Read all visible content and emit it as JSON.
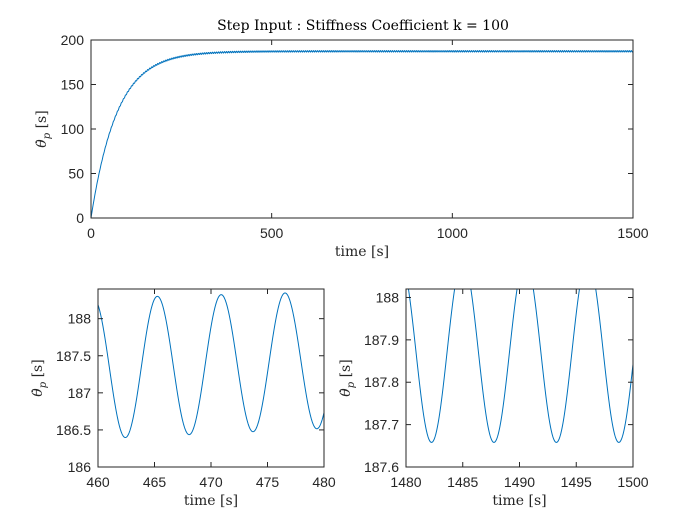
{
  "figure": {
    "background": "#ffffff",
    "line_color": "#0072BD"
  },
  "chart_data": [
    {
      "id": "top",
      "type": "line",
      "title": "Step Input : Stiffness Coefficient k = 100",
      "xlabel": "time [s]",
      "ylabel_main": "θ̇",
      "ylabel_sub": "p",
      "ylabel_unit": "[s]",
      "xlim": [
        0,
        1500
      ],
      "ylim": [
        0,
        200
      ],
      "xticks": [
        0,
        500,
        1000,
        1500
      ],
      "xtick_labels": [
        "0",
        "500",
        "1000",
        "1500"
      ],
      "yticks": [
        0,
        50,
        100,
        150,
        200
      ],
      "ytick_labels": [
        "0",
        "50",
        "100",
        "150",
        "200"
      ],
      "grid": false,
      "series": [
        {
          "model": "step",
          "x_range": [
            0,
            1500
          ],
          "final_value": 187.3,
          "time_constant": 72,
          "oscillation_amplitude": 0.85,
          "oscillation_period": 5.6,
          "samples": 1600
        }
      ]
    },
    {
      "id": "bottom-left",
      "type": "line",
      "title": "",
      "xlabel": "time [s]",
      "ylabel_main": "θ̇",
      "ylabel_sub": "p",
      "ylabel_unit": "[s]",
      "xlim": [
        460,
        480
      ],
      "ylim": [
        186,
        188.4
      ],
      "xticks": [
        460,
        465,
        470,
        475,
        480
      ],
      "xtick_labels": [
        "460",
        "465",
        "470",
        "475",
        "480"
      ],
      "yticks": [
        186,
        186.5,
        187,
        187.5,
        188
      ],
      "ytick_labels": [
        "186",
        "186.5",
        "187",
        "187.5",
        "188"
      ],
      "grid": false,
      "series": [
        {
          "model": "sine",
          "x_range": [
            460,
            480
          ],
          "phase_ref": 459.6,
          "period": 5.65,
          "mean_start": 187.33,
          "mean_end": 187.44,
          "amp_start": 0.95,
          "amp_end": 0.92,
          "samples": 600
        }
      ]
    },
    {
      "id": "bottom-right",
      "type": "line",
      "title": "",
      "xlabel": "time [s]",
      "ylabel_main": "θ̇",
      "ylabel_sub": "p",
      "ylabel_unit": "[s]",
      "xlim": [
        1480,
        1500
      ],
      "ylim": [
        187.6,
        188.02
      ],
      "xticks": [
        1480,
        1485,
        1490,
        1495,
        1500
      ],
      "xtick_labels": [
        "1480",
        "1485",
        "1490",
        "1495",
        "1500"
      ],
      "yticks": [
        187.6,
        187.7,
        187.8,
        187.9,
        188
      ],
      "ytick_labels": [
        "187.6",
        "187.7",
        "187.8",
        "187.9",
        "188"
      ],
      "grid": false,
      "series": [
        {
          "model": "sine",
          "x_range": [
            1480,
            1500
          ],
          "phase_ref": 1479.5,
          "period": 5.5,
          "mean_start": 187.873,
          "mean_end": 187.873,
          "amp_start": 0.215,
          "amp_end": 0.215,
          "samples": 600
        }
      ]
    }
  ]
}
